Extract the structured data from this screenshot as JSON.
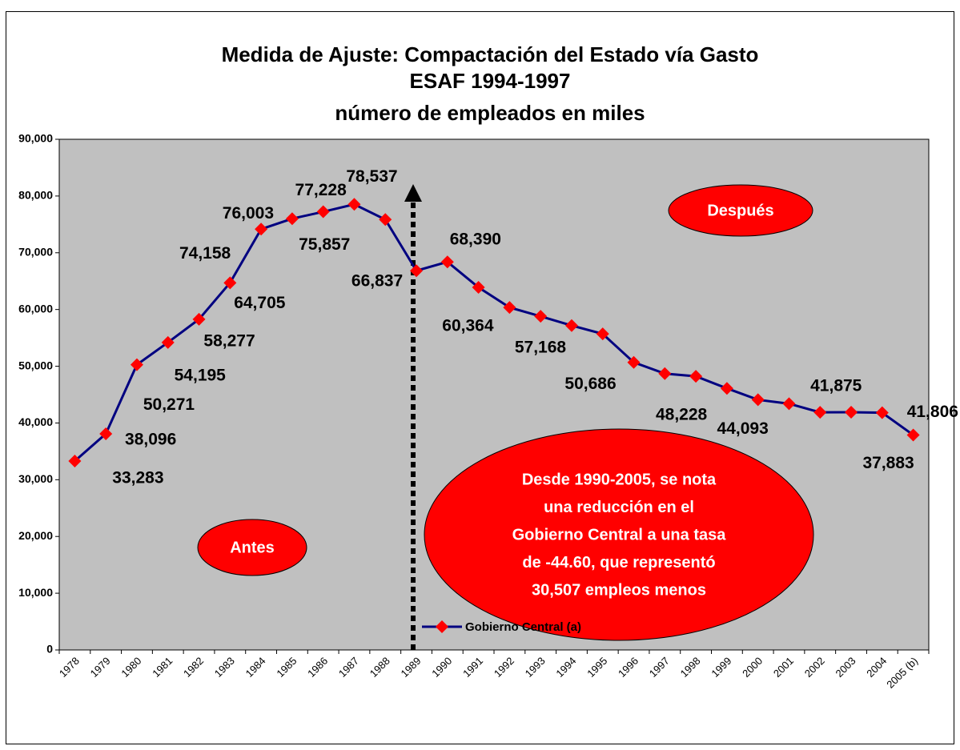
{
  "chart_data": {
    "type": "line",
    "title": [
      "Medida de Ajuste: Compactación del Estado vía Gasto",
      "ESAF 1994-1997",
      "número de empleados en miles"
    ],
    "categories": [
      "1978",
      "1979",
      "1980",
      "1981",
      "1982",
      "1983",
      "1984",
      "1985",
      "1986",
      "1987",
      "1988",
      "1989",
      "1990",
      "1991",
      "1992",
      "1993",
      "1994",
      "1995",
      "1996",
      "1997",
      "1998",
      "1999",
      "2000",
      "2001",
      "2002",
      "2003",
      "2004",
      "2005 (b)"
    ],
    "series": [
      {
        "name": "Gobierno Central (a)",
        "color": "#000080",
        "marker_color": "#ff0000",
        "values": [
          33283,
          38096,
          50271,
          54195,
          58277,
          64705,
          74158,
          76003,
          77228,
          78537,
          75857,
          66837,
          68390,
          63900,
          60364,
          58800,
          57168,
          55700,
          50686,
          48700,
          48228,
          46100,
          44093,
          43400,
          41875,
          41900,
          41806,
          37883
        ],
        "value_labels": [
          "33,283",
          "38,096",
          "50,271",
          "54,195",
          "58,277",
          "64,705",
          "74,158",
          "76,003",
          "77,228",
          "78,537",
          "75,857",
          "66,837",
          "68,390",
          null,
          "60,364",
          null,
          "57,168",
          null,
          "50,686",
          null,
          "48,228",
          null,
          "44,093",
          null,
          "41,875",
          null,
          "41,806",
          "37,883"
        ]
      }
    ],
    "ylim": [
      0,
      90000
    ],
    "yticks": [
      0,
      {
        "value": 10000,
        "label": "10,000"
      },
      {
        "value": 20000,
        "label": "20,000"
      },
      {
        "value": 30000,
        "label": "30,000"
      },
      {
        "value": 40000,
        "label": "40,000"
      },
      {
        "value": 50000,
        "label": "50,000"
      },
      {
        "value": 60000,
        "label": "60,000"
      },
      {
        "value": 70000,
        "label": "70,000"
      },
      {
        "value": 80000,
        "label": "80,000"
      },
      {
        "value": 90000,
        "label": "90,000"
      }
    ],
    "annotations": {
      "before": "Antes",
      "after": "Después",
      "note": [
        "Desde 1990-2005, se nota",
        "una reducción en el",
        "Gobierno Central a una tasa",
        "de -44.60, que representó",
        "30,507 empleos menos"
      ]
    },
    "legend": "bottom"
  }
}
